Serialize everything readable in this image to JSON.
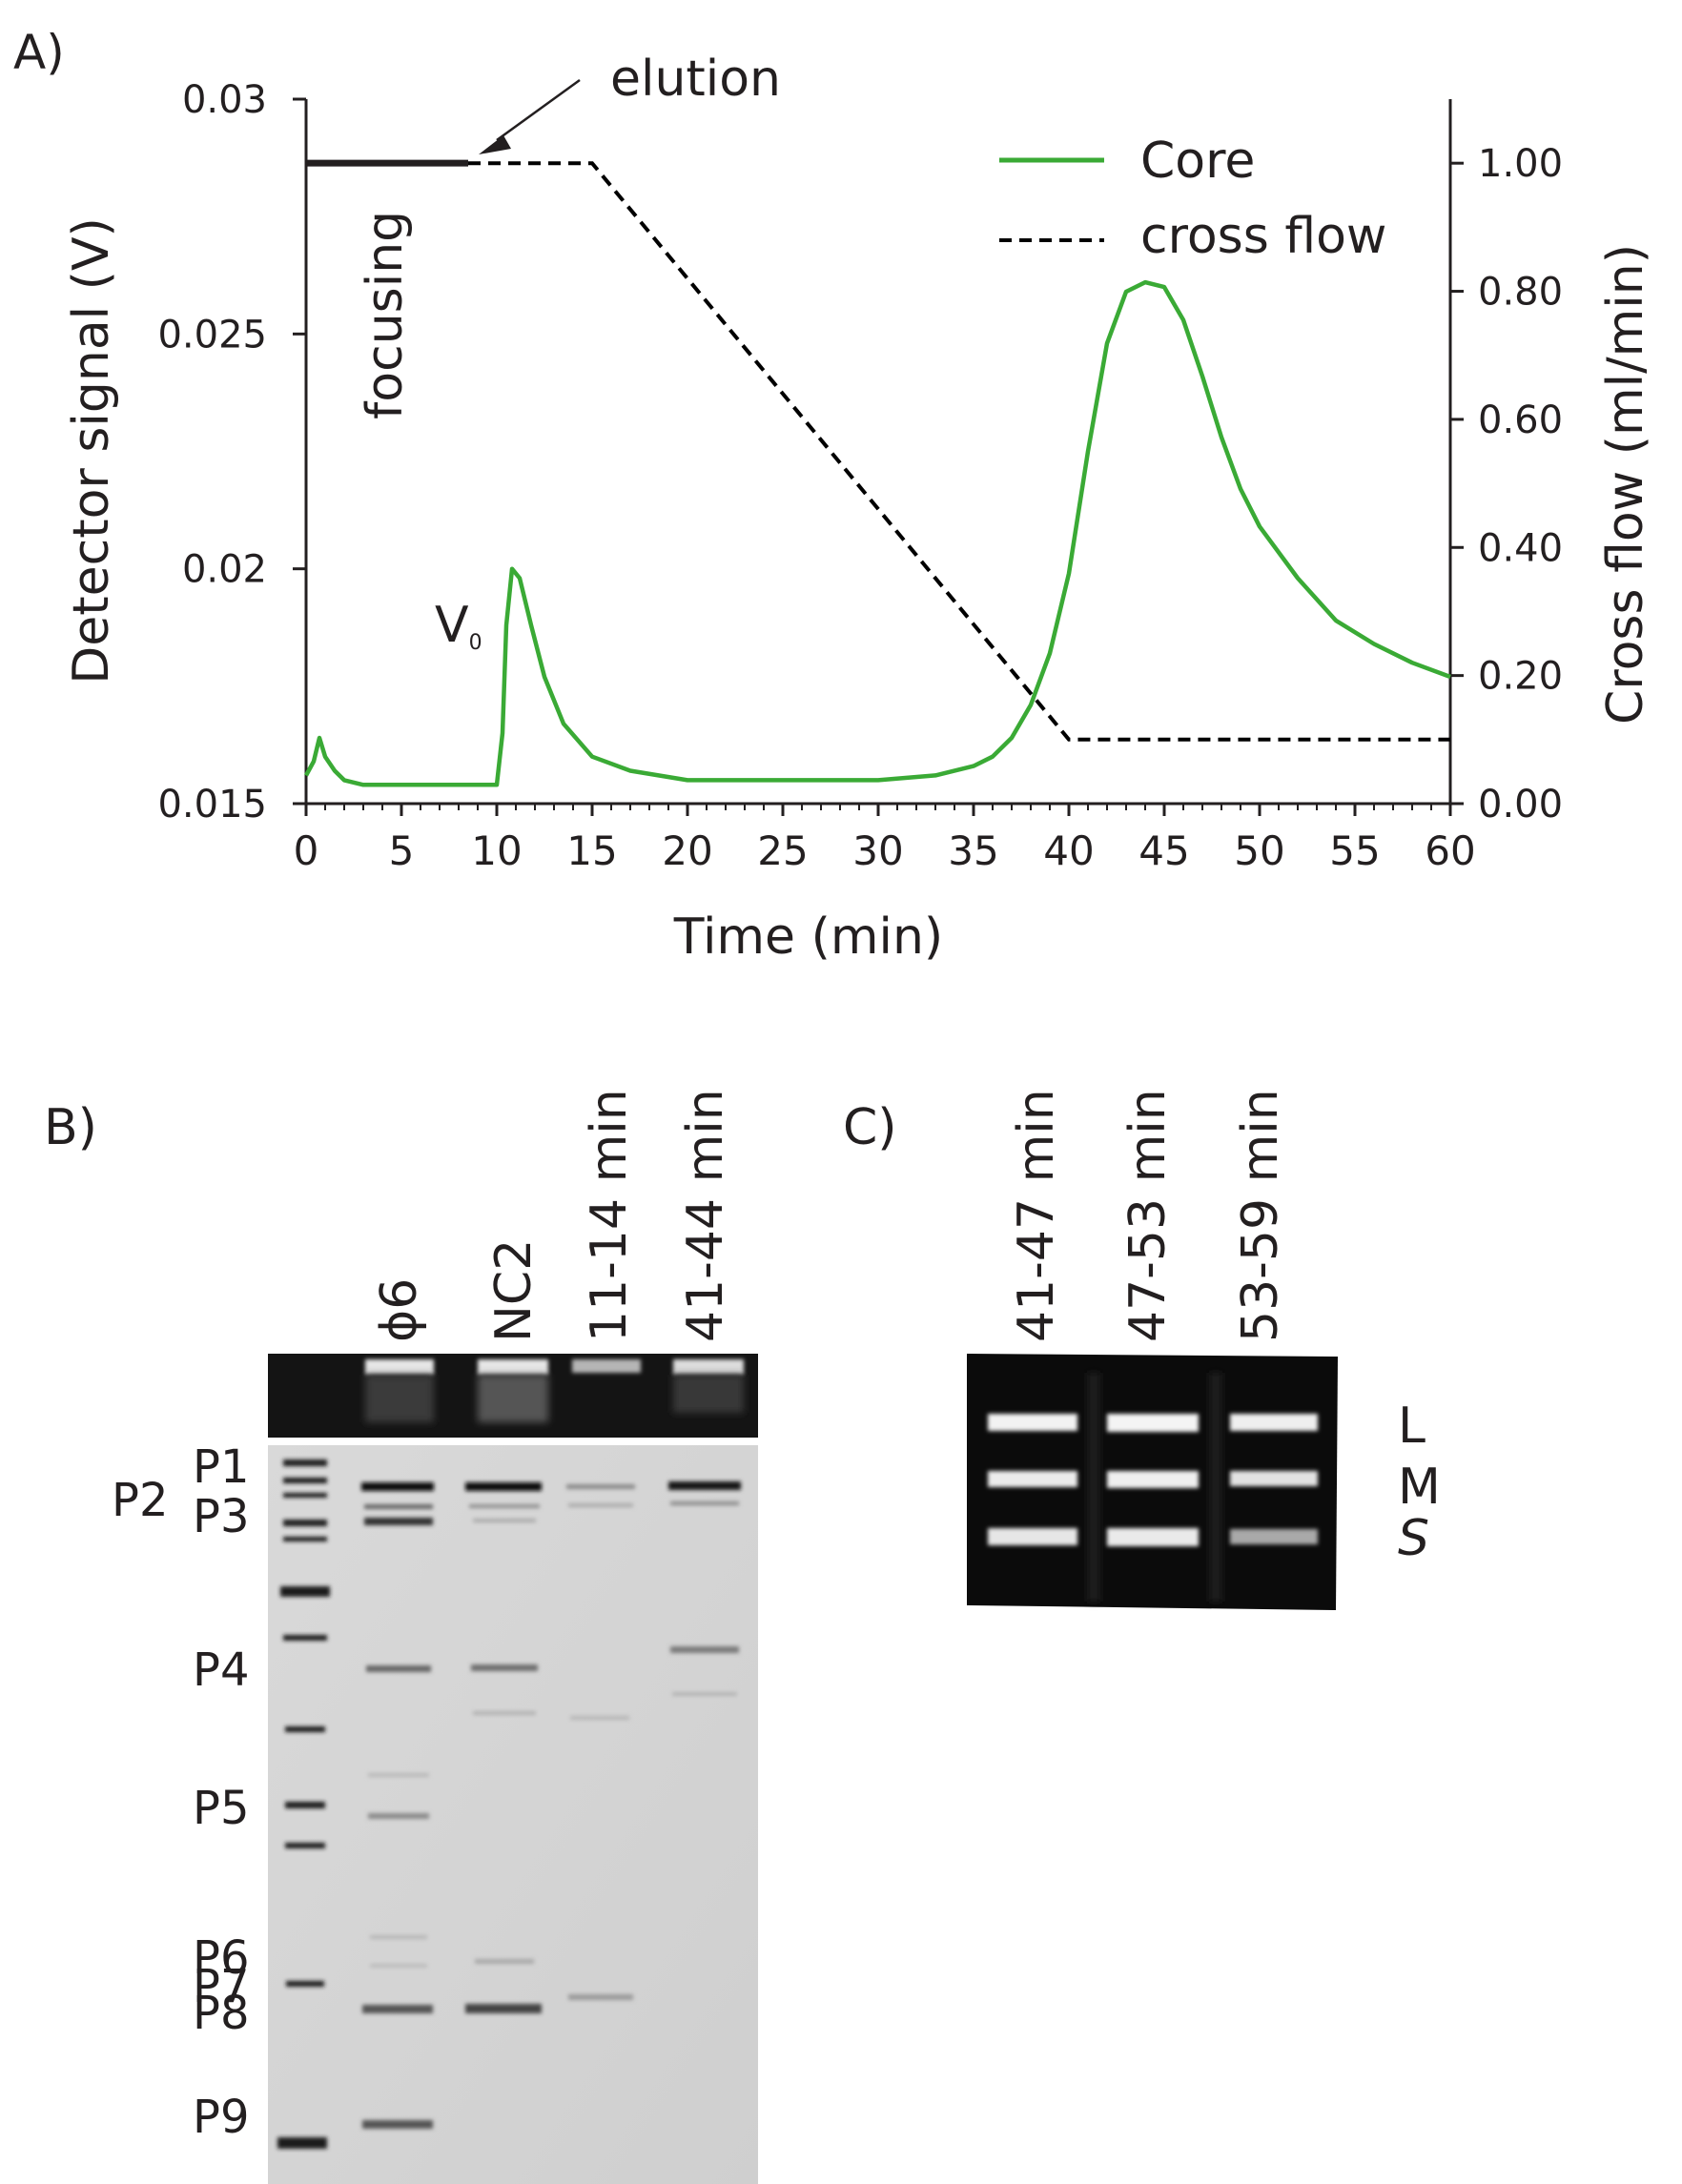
{
  "panel_a": {
    "label": "A)",
    "chart_data": {
      "type": "line",
      "xlabel": "Time (min)",
      "ylabel_left": "Detector signal (V)",
      "ylabel_right": "Cross flow (ml/min)",
      "x_ticks": [
        "0",
        "5",
        "10",
        "15",
        "20",
        "25",
        "30",
        "35",
        "40",
        "45",
        "50",
        "55",
        "60"
      ],
      "y_left_ticks": [
        "0.015",
        "0.02",
        "0.025",
        "0.03"
      ],
      "y_right_ticks": [
        "0.00",
        "0.20",
        "0.40",
        "0.60",
        "0.80",
        "1.00"
      ],
      "xlim": [
        0,
        60
      ],
      "ylim_left": [
        0.015,
        0.03
      ],
      "ylim_right": [
        0,
        1.1
      ],
      "legend_position": "top-right",
      "series": [
        {
          "name": "Core",
          "axis": "left",
          "color": "#3aaa35",
          "style": "solid",
          "x": [
            0,
            0.4,
            0.7,
            1.0,
            1.5,
            2,
            3,
            5,
            8,
            10,
            10.3,
            10.5,
            10.8,
            11.2,
            11.8,
            12.5,
            13.5,
            15,
            17,
            20,
            25,
            30,
            33,
            35,
            36,
            37,
            38,
            39,
            40,
            41,
            42,
            43,
            44,
            45,
            46,
            47,
            48,
            49,
            50,
            52,
            54,
            56,
            58,
            60
          ],
          "values": [
            0.0156,
            0.0159,
            0.0164,
            0.016,
            0.0157,
            0.0155,
            0.0154,
            0.0154,
            0.0154,
            0.0154,
            0.0165,
            0.0188,
            0.02,
            0.0198,
            0.0188,
            0.0177,
            0.0167,
            0.016,
            0.0157,
            0.0155,
            0.0155,
            0.0155,
            0.0156,
            0.0158,
            0.016,
            0.0164,
            0.0171,
            0.0182,
            0.0199,
            0.0225,
            0.0248,
            0.0259,
            0.0261,
            0.026,
            0.0253,
            0.0241,
            0.0228,
            0.0217,
            0.0209,
            0.0198,
            0.0189,
            0.0184,
            0.018,
            0.0177
          ]
        },
        {
          "name": "cross flow",
          "axis": "right",
          "color": "#000000",
          "style": "dashed",
          "x": [
            0,
            8.5,
            15,
            40,
            60
          ],
          "values": [
            1.0,
            1.0,
            1.0,
            0.1,
            0.1
          ]
        }
      ],
      "annotations": [
        {
          "text": "elution",
          "x": 9.3,
          "y": 1.0,
          "type": "arrow"
        },
        {
          "text": "focusing",
          "x": [
            0,
            8.5
          ],
          "y": 1.0,
          "type": "solid-bar"
        },
        {
          "text": "V",
          "sub": "0",
          "x": 10,
          "y": 0.0199
        }
      ]
    }
  },
  "panel_b": {
    "label": "B)",
    "lanes": [
      "ϕ6",
      "NC2",
      "11-14 min",
      "41-44 min"
    ],
    "bands": [
      "P1",
      "P2",
      "P3",
      "P4",
      "P5",
      "P6",
      "P7",
      "P8",
      "P9"
    ]
  },
  "panel_c": {
    "label": "C)",
    "lanes": [
      "41-47 min",
      "47-53 min",
      "53-59 min"
    ],
    "bands": [
      "L",
      "M",
      "S"
    ]
  }
}
